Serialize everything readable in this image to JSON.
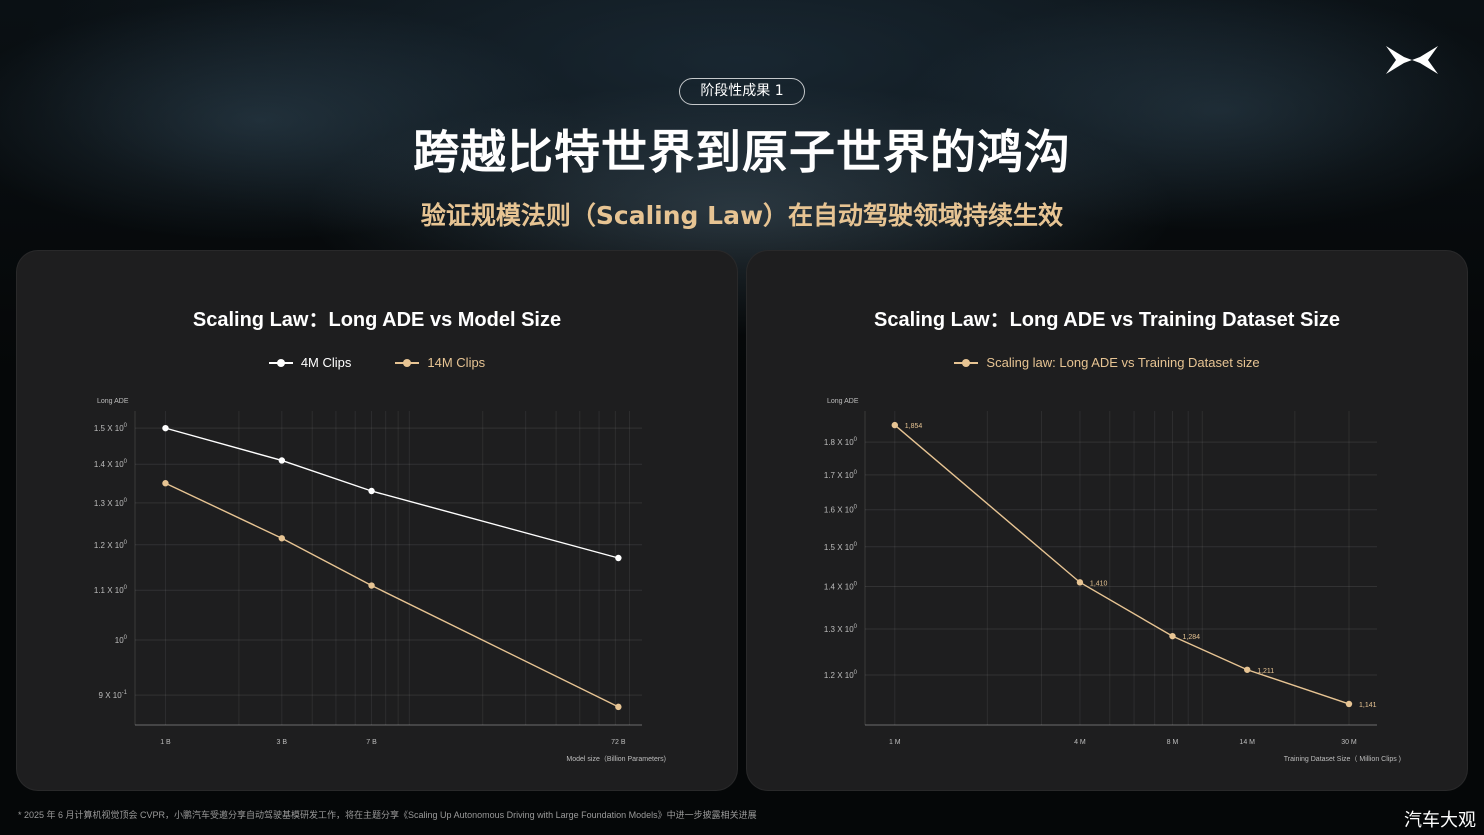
{
  "brand": {
    "logo_icon": "xpeng-x-logo-icon"
  },
  "header": {
    "badge": "阶段性成果 1",
    "title": "跨越比特世界到原子世界的鸿沟",
    "subtitle": "验证规模法则（Scaling Law）在自动驾驶领域持续生效"
  },
  "colors": {
    "white_series": "#ffffff",
    "gold_series": "#e7c493",
    "subtitle": "#e7c493",
    "panel": "#1e1e1f"
  },
  "footnote": "* 2025 年 6 月计算机视觉顶会 CVPR，小鹏汽车受邀分享自动驾驶基模研发工作，将在主题分享《Scaling Up Autonomous Driving with Large Foundation Models》中进一步披露相关进展",
  "watermark": "汽车大观",
  "chart_data": [
    {
      "type": "line",
      "title": "Scaling Law：Long ADE vs Model Size",
      "ylabel": "Long ADE",
      "xlabel": "Model size（Billion Parameters)",
      "x_scale": "log",
      "y_scale": "log",
      "x": [
        1,
        3,
        7,
        72
      ],
      "x_tick_labels": [
        "1 B",
        "3 B",
        "7 B",
        "72 B"
      ],
      "y_ticks": [
        0.9,
        1.0,
        1.1,
        1.2,
        1.3,
        1.4,
        1.5
      ],
      "y_tick_labels": [
        {
          "base": "9 X 10",
          "exp": "-1"
        },
        {
          "base": "10",
          "exp": "0"
        },
        {
          "base": "1.1 X 10",
          "exp": "0"
        },
        {
          "base": "1.2 X 10",
          "exp": "0"
        },
        {
          "base": "1.3 X 10",
          "exp": "0"
        },
        {
          "base": "1.4 X 10",
          "exp": "0"
        },
        {
          "base": "1.5 X 10",
          "exp": "0"
        }
      ],
      "ylim": [
        0.85,
        1.55
      ],
      "grid": true,
      "legend": "top-center",
      "series": [
        {
          "name": "4M Clips",
          "color": "#ffffff",
          "values": [
            1.5,
            1.41,
            1.33,
            1.17
          ]
        },
        {
          "name": "14M Clips",
          "color": "#e7c493",
          "values": [
            1.35,
            1.215,
            1.11,
            0.88
          ]
        }
      ]
    },
    {
      "type": "line",
      "title": "Scaling Law：Long ADE vs Training Dataset Size",
      "ylabel": "Long ADE",
      "xlabel": "Training Dataset Size（ Million Clips )",
      "x_scale": "log",
      "y_scale": "log",
      "x": [
        1,
        4,
        8,
        14,
        30
      ],
      "x_tick_labels": [
        "1 M",
        "4 M",
        "8 M",
        "14 M",
        "30 M"
      ],
      "y_ticks": [
        1.2,
        1.3,
        1.4,
        1.5,
        1.6,
        1.7,
        1.8
      ],
      "y_tick_labels": [
        {
          "base": "1.2 X 10",
          "exp": "0"
        },
        {
          "base": "1.3 X 10",
          "exp": "0"
        },
        {
          "base": "1.4 X 10",
          "exp": "0"
        },
        {
          "base": "1.5 X 10",
          "exp": "0"
        },
        {
          "base": "1.6 X 10",
          "exp": "0"
        },
        {
          "base": "1.7 X 10",
          "exp": "0"
        },
        {
          "base": "1.8 X 10",
          "exp": "0"
        }
      ],
      "ylim": [
        1.1,
        1.9
      ],
      "grid": true,
      "legend": "top-center",
      "series": [
        {
          "name": "Scaling law: Long ADE vs Training Dataset size",
          "color": "#e7c493",
          "values": [
            1.854,
            1.41,
            1.284,
            1.211,
            1.141
          ],
          "data_labels": [
            "1,854",
            "1,410",
            "1,284",
            "1,211",
            "1,141"
          ]
        }
      ]
    }
  ]
}
